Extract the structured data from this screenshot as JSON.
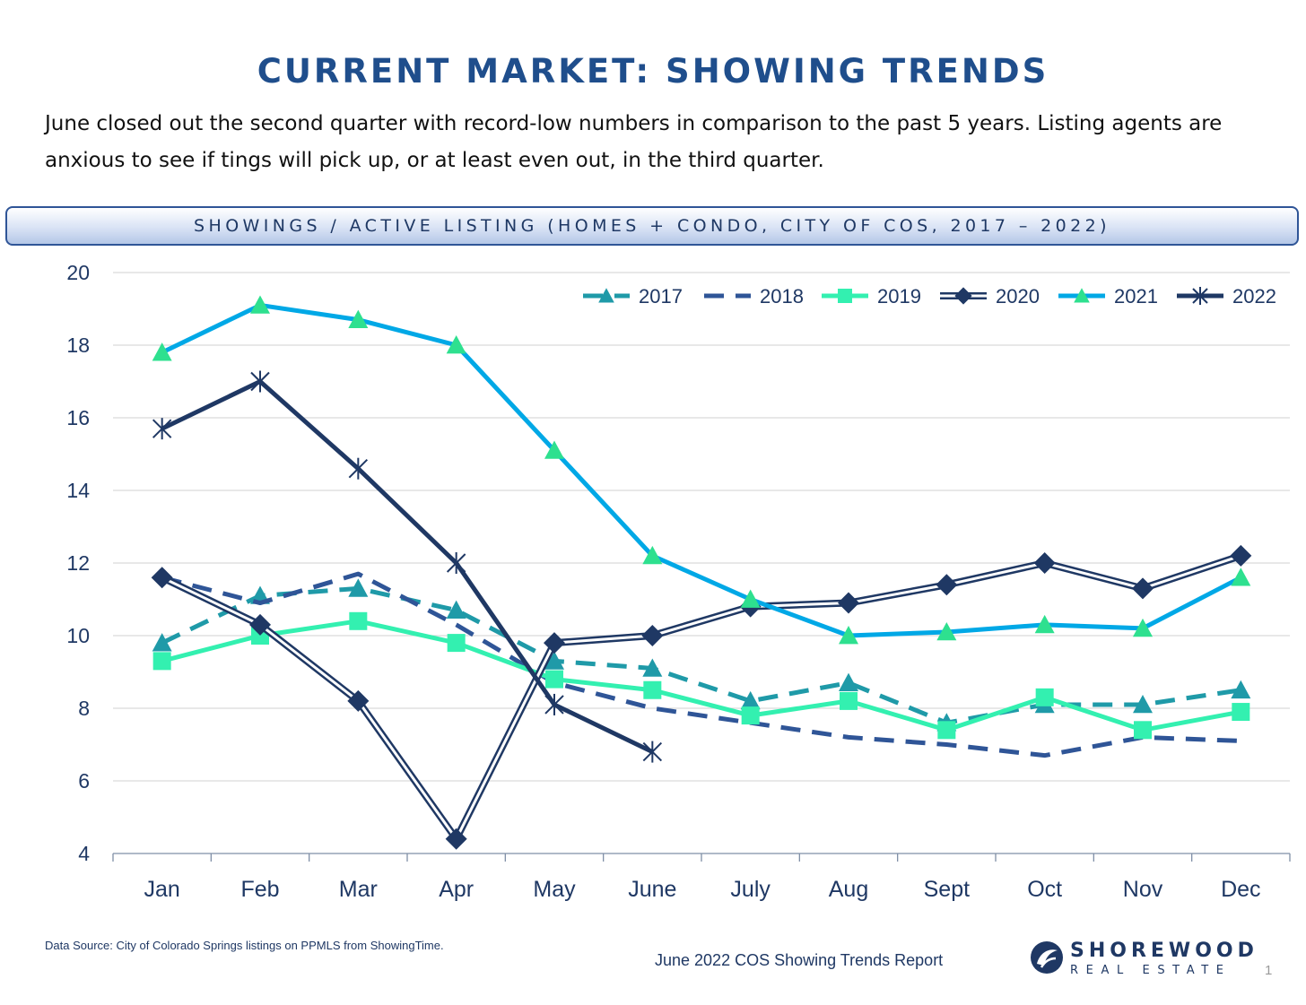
{
  "header": {
    "title": "CURRENT MARKET: SHOWING TRENDS",
    "intro_line1": "June closed out the second quarter with record-low numbers in comparison to the past 5 years. Listing agents are",
    "intro_line2": "anxious to see if tings will pick up, or at least even out, in the third quarter."
  },
  "chart_data": {
    "type": "line",
    "title": "SHOWINGS / ACTIVE LISTING (HOMES + CONDO, CITY OF COS, 2017 – 2022)",
    "xlabel": "",
    "ylabel": "",
    "categories": [
      "Jan",
      "Feb",
      "Mar",
      "Apr",
      "May",
      "June",
      "July",
      "Aug",
      "Sept",
      "Oct",
      "Nov",
      "Dec"
    ],
    "ylim": [
      4,
      20
    ],
    "yticks": [
      4,
      6,
      8,
      10,
      12,
      14,
      16,
      18,
      20
    ],
    "grid": true,
    "legend_position": "top-right",
    "series": [
      {
        "name": "2017",
        "color": "#1f9aa8",
        "marker": "triangle",
        "style": "dashed",
        "values": [
          9.8,
          11.1,
          11.3,
          10.7,
          9.3,
          9.1,
          8.2,
          8.7,
          7.6,
          8.1,
          8.1,
          8.5
        ]
      },
      {
        "name": "2018",
        "color": "#2f5597",
        "marker": "none",
        "style": "dashed",
        "values": [
          11.6,
          10.9,
          11.7,
          10.3,
          8.7,
          8.0,
          7.6,
          7.2,
          7.0,
          6.7,
          7.2,
          7.1
        ]
      },
      {
        "name": "2019",
        "color": "#33f0b0",
        "marker": "square",
        "style": "solid",
        "values": [
          9.3,
          10.0,
          10.4,
          9.8,
          8.8,
          8.5,
          7.8,
          8.2,
          7.4,
          8.3,
          7.4,
          7.9
        ]
      },
      {
        "name": "2020",
        "color": "#1f3864",
        "marker": "diamond",
        "style": "double",
        "values": [
          11.6,
          10.3,
          8.2,
          4.4,
          9.8,
          10.0,
          10.8,
          10.9,
          11.4,
          12.0,
          11.3,
          12.2
        ]
      },
      {
        "name": "2021",
        "color": "#00a8e6",
        "marker": "triangle",
        "markerColor": "#2ee08f",
        "style": "solid",
        "values": [
          17.8,
          19.1,
          18.7,
          18.0,
          15.1,
          12.2,
          11.0,
          10.0,
          10.1,
          10.3,
          10.2,
          11.6
        ]
      },
      {
        "name": "2022",
        "color": "#1f3864",
        "marker": "star",
        "style": "solid",
        "values": [
          15.7,
          17.0,
          14.6,
          12.0,
          8.1,
          6.8,
          null,
          null,
          null,
          null,
          null,
          null
        ]
      }
    ]
  },
  "footer": {
    "source": "Data Source: City of Colorado Springs listings on PPMLS from ShowingTime.",
    "report": "June 2022 COS Showing Trends Report",
    "logo_name": "SHOREWOOD",
    "logo_sub": "REAL ESTATE",
    "page": "1"
  }
}
